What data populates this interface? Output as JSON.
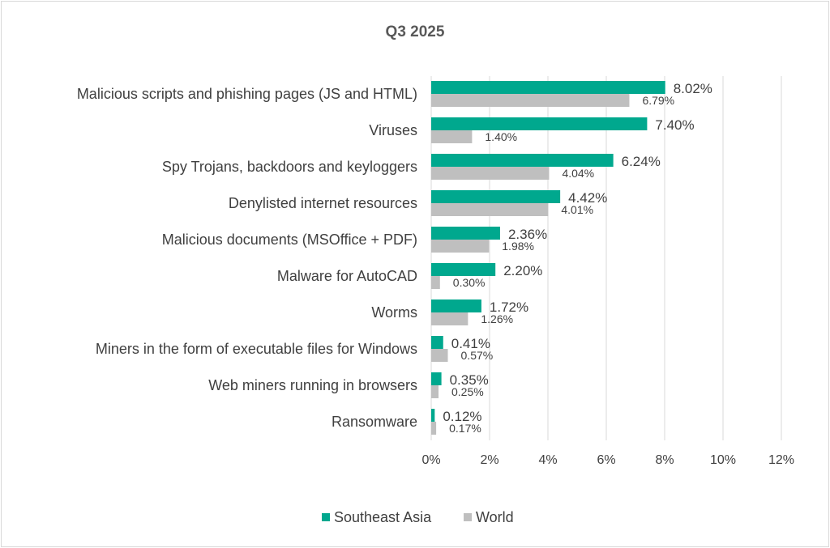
{
  "chart_data": {
    "type": "bar",
    "orientation": "horizontal",
    "title": "Q3 2025",
    "categories": [
      "Malicious scripts and phishing pages (JS and HTML)",
      "Viruses",
      "Spy Trojans, backdoors and keyloggers",
      "Denylisted internet resources",
      "Malicious documents (MSOffice + PDF)",
      "Malware for AutoCAD",
      "Worms",
      "Miners in the form of executable files for Windows",
      "Web miners running in browsers",
      "Ransomware"
    ],
    "series": [
      {
        "name": "Southeast Asia",
        "color": "#00a88e",
        "values": [
          8.02,
          7.4,
          6.24,
          4.42,
          2.36,
          2.2,
          1.72,
          0.41,
          0.35,
          0.12
        ],
        "labels": [
          "8.02%",
          "7.40%",
          "6.24%",
          "4.42%",
          "2.36%",
          "2.20%",
          "1.72%",
          "0.41%",
          "0.35%",
          "0.12%"
        ]
      },
      {
        "name": "World",
        "color": "#bfbfbf",
        "values": [
          6.79,
          1.4,
          4.04,
          4.01,
          1.98,
          0.3,
          1.26,
          0.57,
          0.25,
          0.17
        ],
        "labels": [
          "6.79%",
          "1.40%",
          "4.04%",
          "4.01%",
          "1.98%",
          "0.30%",
          "1.26%",
          "0.57%",
          "0.25%",
          "0.17%"
        ]
      }
    ],
    "xlim": [
      0,
      12
    ],
    "xticks": [
      0,
      2,
      4,
      6,
      8,
      10,
      12
    ],
    "xtick_labels": [
      "0%",
      "2%",
      "4%",
      "6%",
      "8%",
      "10%",
      "12%"
    ],
    "grid": true,
    "legend_position": "bottom"
  }
}
